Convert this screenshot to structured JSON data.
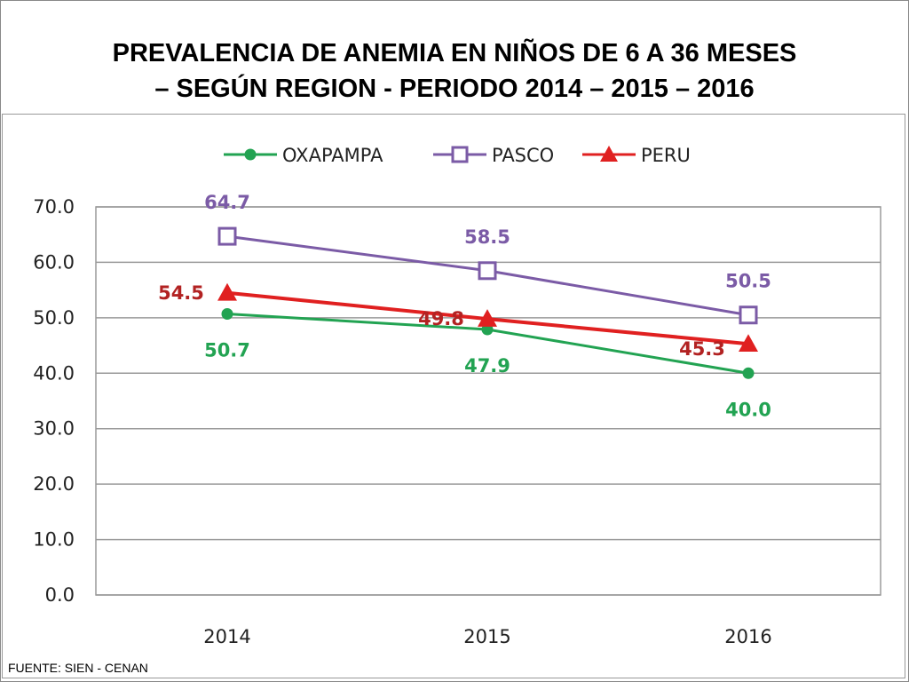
{
  "title_line1": "PREVALENCIA DE ANEMIA EN NIÑOS DE 6 A 36 MESES",
  "title_line2": "– SEGÚN REGION - PERIODO 2014 – 2015 – 2016",
  "source": "FUENTE: SIEN - CENAN",
  "chart_data": {
    "type": "line",
    "categories": [
      "2014",
      "2015",
      "2016"
    ],
    "ylim": [
      0,
      70
    ],
    "yticks": [
      "0.0",
      "10.0",
      "20.0",
      "30.0",
      "40.0",
      "50.0",
      "60.0",
      "70.0"
    ],
    "legend_position": "top",
    "series": [
      {
        "name": "OXAPAMPA",
        "values": [
          50.7,
          47.9,
          40.0
        ],
        "labels": [
          "50.7",
          "47.9",
          "40.0"
        ],
        "color": "#22A352",
        "marker": "circle",
        "label_side": "below"
      },
      {
        "name": "PASCO",
        "values": [
          64.7,
          58.5,
          50.5
        ],
        "labels": [
          "64.7",
          "58.5",
          "50.5"
        ],
        "color": "#7B5BA6",
        "marker": "square",
        "label_side": "above"
      },
      {
        "name": "PERU",
        "values": [
          54.5,
          49.8,
          45.3
        ],
        "labels": [
          "54.5",
          "49.8",
          "45.3"
        ],
        "color": "#E02020",
        "marker": "triangle",
        "label_side": "left"
      }
    ]
  }
}
